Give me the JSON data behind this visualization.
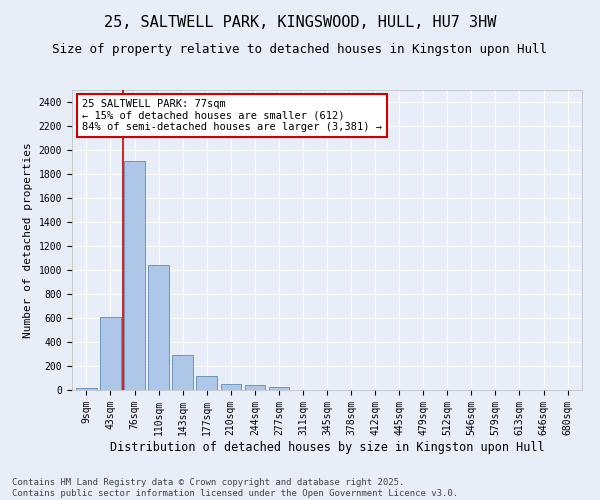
{
  "title": "25, SALTWELL PARK, KINGSWOOD, HULL, HU7 3HW",
  "subtitle": "Size of property relative to detached houses in Kingston upon Hull",
  "xlabel": "Distribution of detached houses by size in Kingston upon Hull",
  "ylabel": "Number of detached properties",
  "categories": [
    "9sqm",
    "43sqm",
    "76sqm",
    "110sqm",
    "143sqm",
    "177sqm",
    "210sqm",
    "244sqm",
    "277sqm",
    "311sqm",
    "345sqm",
    "378sqm",
    "412sqm",
    "445sqm",
    "479sqm",
    "512sqm",
    "546sqm",
    "579sqm",
    "613sqm",
    "646sqm",
    "680sqm"
  ],
  "values": [
    20,
    612,
    1910,
    1045,
    295,
    118,
    50,
    42,
    28,
    0,
    0,
    0,
    0,
    0,
    0,
    0,
    0,
    0,
    0,
    0,
    0
  ],
  "bar_color": "#aec6e8",
  "bar_edge_color": "#5b8db8",
  "vline_color": "#cc0000",
  "annotation_text": "25 SALTWELL PARK: 77sqm\n← 15% of detached houses are smaller (612)\n84% of semi-detached houses are larger (3,381) →",
  "annotation_box_color": "#ffffff",
  "annotation_box_edge": "#cc0000",
  "ylim": [
    0,
    2500
  ],
  "yticks": [
    0,
    200,
    400,
    600,
    800,
    1000,
    1200,
    1400,
    1600,
    1800,
    2000,
    2200,
    2400
  ],
  "background_color": "#e8eef8",
  "grid_color": "#ffffff",
  "footer": "Contains HM Land Registry data © Crown copyright and database right 2025.\nContains public sector information licensed under the Open Government Licence v3.0.",
  "title_fontsize": 11,
  "subtitle_fontsize": 9,
  "xlabel_fontsize": 8.5,
  "ylabel_fontsize": 8,
  "tick_fontsize": 7,
  "annotation_fontsize": 7.5,
  "footer_fontsize": 6.5
}
